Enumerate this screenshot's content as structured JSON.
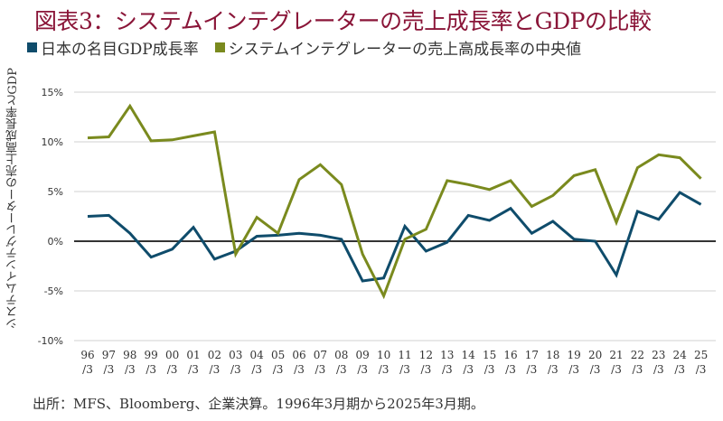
{
  "chart_data": {
    "type": "line",
    "title": "図表3：システムインテグレーターの売上成長率とGDPの比較",
    "xlabel": "",
    "ylabel": "システムインテグレーターの売上高成長率とGDP",
    "source": "出所：MFS、Bloomberg、企業決算。1996年3月期から2025年3月期。",
    "ylim": [
      -10,
      15
    ],
    "yticks": [
      15,
      10,
      5,
      0,
      -5,
      -10
    ],
    "ytick_labels": [
      "15%",
      "10%",
      "5%",
      "0%",
      "-5%",
      "-10%"
    ],
    "grid": true,
    "legend_position": "top-left",
    "categories": [
      "96",
      "97",
      "98",
      "99",
      "00",
      "01",
      "02",
      "03",
      "04",
      "05",
      "06",
      "07",
      "08",
      "09",
      "10",
      "11",
      "12",
      "13",
      "14",
      "15",
      "16",
      "17",
      "18",
      "19",
      "20",
      "21",
      "22",
      "23",
      "24",
      "25"
    ],
    "category_suffix": "/3",
    "series": [
      {
        "name": "日本の名目GDP成長率",
        "color": "#0f4c6b",
        "values": [
          2.5,
          2.6,
          0.8,
          -1.6,
          -0.8,
          1.4,
          -1.8,
          -1.0,
          0.5,
          0.6,
          0.8,
          0.6,
          0.2,
          -4.0,
          -3.7,
          1.5,
          -1.0,
          -0.1,
          2.6,
          2.1,
          3.3,
          0.8,
          2.0,
          0.2,
          0.0,
          -3.4,
          3.0,
          2.2,
          4.9,
          3.7
        ]
      },
      {
        "name": "システムインテグレーターの売上高成長率の中央値",
        "color": "#7a8a1e",
        "values": [
          10.4,
          10.5,
          13.6,
          10.1,
          10.2,
          10.6,
          11.0,
          -1.3,
          2.4,
          0.8,
          6.2,
          7.7,
          5.7,
          -1.3,
          -5.5,
          0.2,
          1.2,
          6.1,
          5.7,
          5.2,
          6.1,
          3.5,
          4.6,
          6.6,
          7.2,
          1.9,
          7.4,
          8.7,
          8.4,
          6.3
        ]
      }
    ],
    "colors": {
      "title": "#8a1538",
      "grid": "#d0d0d0",
      "zero_line": "#333333"
    }
  }
}
